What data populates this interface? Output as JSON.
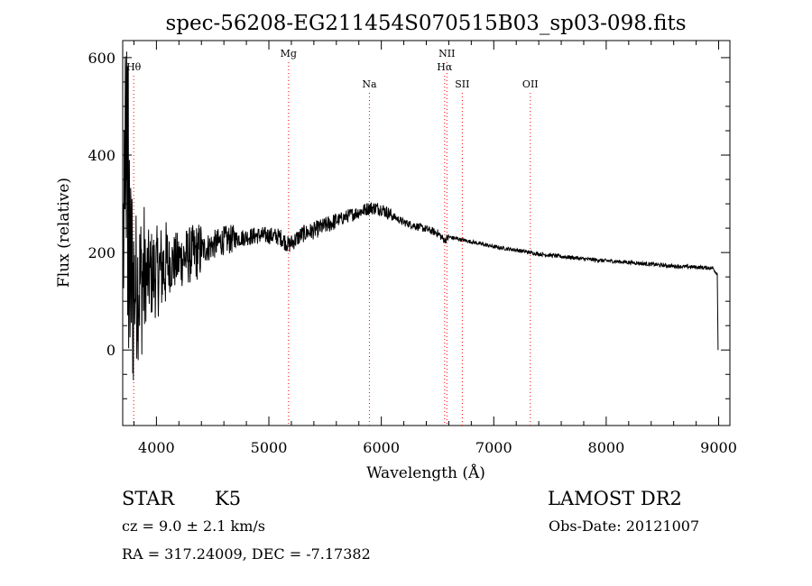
{
  "chart_data": {
    "type": "line",
    "title": "spec-56208-EG211454S070515B03_sp03-098.fits",
    "xlabel": "Wavelength (Å)",
    "ylabel": "Flux (relative)",
    "xlim": [
      3700,
      9100
    ],
    "ylim": [
      -155,
      635
    ],
    "xticks": [
      4000,
      5000,
      6000,
      7000,
      8000,
      9000
    ],
    "yticks": [
      0,
      200,
      400,
      600
    ],
    "line_color": "#000000",
    "marker_color": "#ff0000",
    "grid": false,
    "lines": [
      {
        "name": "Hθ",
        "wavelength": 3798,
        "row": 1
      },
      {
        "name": "Mg",
        "wavelength": 5175,
        "row": 0
      },
      {
        "name": "Na",
        "wavelength": 5894,
        "row": 2
      },
      {
        "name": "NII",
        "wavelength": 6583,
        "row": 0
      },
      {
        "name": "Hα",
        "wavelength": 6563,
        "row": 1
      },
      {
        "name": "SII",
        "wavelength": 6720,
        "row": 2
      },
      {
        "name": "OII",
        "wavelength": 7325,
        "row": 2
      }
    ],
    "spectrum_knots": [
      [
        3700,
        230
      ],
      [
        3750,
        170
      ],
      [
        3800,
        130
      ],
      [
        3850,
        140
      ],
      [
        3900,
        150
      ],
      [
        4000,
        160
      ],
      [
        4100,
        175
      ],
      [
        4200,
        185
      ],
      [
        4300,
        195
      ],
      [
        4400,
        205
      ],
      [
        4500,
        215
      ],
      [
        4600,
        225
      ],
      [
        4700,
        228
      ],
      [
        4800,
        232
      ],
      [
        4900,
        235
      ],
      [
        5000,
        235
      ],
      [
        5100,
        232
      ],
      [
        5175,
        215
      ],
      [
        5300,
        238
      ],
      [
        5400,
        245
      ],
      [
        5500,
        255
      ],
      [
        5600,
        265
      ],
      [
        5700,
        275
      ],
      [
        5800,
        283
      ],
      [
        5900,
        292
      ],
      [
        6000,
        290
      ],
      [
        6100,
        275
      ],
      [
        6200,
        262
      ],
      [
        6300,
        255
      ],
      [
        6400,
        248
      ],
      [
        6500,
        240
      ],
      [
        6563,
        225
      ],
      [
        6600,
        232
      ],
      [
        6800,
        222
      ],
      [
        7000,
        212
      ],
      [
        7200,
        205
      ],
      [
        7400,
        197
      ],
      [
        7600,
        192
      ],
      [
        7800,
        187
      ],
      [
        8000,
        183
      ],
      [
        8200,
        180
      ],
      [
        8400,
        176
      ],
      [
        8600,
        172
      ],
      [
        8800,
        170
      ],
      [
        8950,
        168
      ],
      [
        8990,
        155
      ]
    ]
  },
  "info": {
    "object_type": "STAR",
    "subclass": "K5",
    "survey": "LAMOST DR2",
    "redshift": "cz = 9.0 ± 2.1 km/s",
    "obs_date": "Obs-Date: 20121007",
    "coords": "RA = 317.24009, DEC =  -7.17382"
  }
}
